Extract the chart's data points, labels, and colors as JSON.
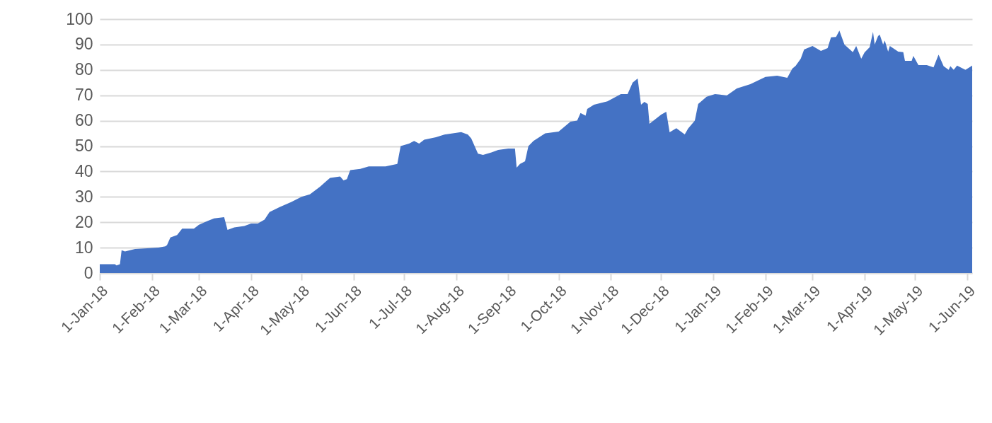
{
  "chart_data": {
    "type": "area",
    "x": [
      "2018-01-01",
      "2018-01-10",
      "2018-01-11",
      "2018-01-13",
      "2018-01-14",
      "2018-01-16",
      "2018-01-22",
      "2018-01-31",
      "2018-02-05",
      "2018-02-09",
      "2018-02-10",
      "2018-02-12",
      "2018-02-16",
      "2018-02-19",
      "2018-02-26",
      "2018-03-01",
      "2018-03-06",
      "2018-03-10",
      "2018-03-16",
      "2018-03-18",
      "2018-03-22",
      "2018-03-28",
      "2018-04-01",
      "2018-04-05",
      "2018-04-09",
      "2018-04-12",
      "2018-04-18",
      "2018-04-25",
      "2018-05-01",
      "2018-05-06",
      "2018-05-12",
      "2018-05-18",
      "2018-05-24",
      "2018-05-26",
      "2018-05-28",
      "2018-05-30",
      "2018-06-05",
      "2018-06-10",
      "2018-06-20",
      "2018-06-27",
      "2018-06-29",
      "2018-07-04",
      "2018-07-07",
      "2018-07-10",
      "2018-07-13",
      "2018-07-20",
      "2018-07-25",
      "2018-08-04",
      "2018-08-08",
      "2018-08-10",
      "2018-08-14",
      "2018-08-17",
      "2018-08-22",
      "2018-08-26",
      "2018-09-01",
      "2018-09-05",
      "2018-09-06",
      "2018-09-08",
      "2018-09-11",
      "2018-09-13",
      "2018-09-16",
      "2018-09-23",
      "2018-10-01",
      "2018-10-08",
      "2018-10-12",
      "2018-10-14",
      "2018-10-17",
      "2018-10-18",
      "2018-10-22",
      "2018-10-30",
      "2018-11-07",
      "2018-11-11",
      "2018-11-14",
      "2018-11-17",
      "2018-11-19",
      "2018-11-21",
      "2018-11-23",
      "2018-11-24",
      "2018-12-01",
      "2018-12-04",
      "2018-12-06",
      "2018-12-10",
      "2018-12-15",
      "2018-12-17",
      "2018-12-21",
      "2018-12-23",
      "2018-12-28",
      "2019-01-02",
      "2019-01-09",
      "2019-01-15",
      "2019-01-23",
      "2019-02-01",
      "2019-02-08",
      "2019-02-14",
      "2019-02-17",
      "2019-02-19",
      "2019-02-22",
      "2019-02-24",
      "2019-03-01",
      "2019-03-06",
      "2019-03-10",
      "2019-03-12",
      "2019-03-15",
      "2019-03-17",
      "2019-03-20",
      "2019-03-25",
      "2019-03-27",
      "2019-03-30",
      "2019-04-01",
      "2019-04-04",
      "2019-04-06",
      "2019-04-07",
      "2019-04-09",
      "2019-04-10",
      "2019-04-12",
      "2019-04-13",
      "2019-04-15",
      "2019-04-16",
      "2019-04-21",
      "2019-04-24",
      "2019-04-25",
      "2019-04-29",
      "2019-04-30",
      "2019-05-03",
      "2019-05-08",
      "2019-05-12",
      "2019-05-15",
      "2019-05-18",
      "2019-05-21",
      "2019-05-22",
      "2019-05-24",
      "2019-05-26",
      "2019-05-31",
      "2019-06-04"
    ],
    "series": [
      {
        "color": "#4472c4",
        "values": [
          3.5,
          3.5,
          3,
          3.5,
          9,
          8.5,
          9.5,
          9.8,
          10,
          10.5,
          11,
          14,
          15,
          17.5,
          17.5,
          19,
          20.5,
          21.5,
          22,
          17,
          18,
          18.5,
          19.5,
          19.5,
          21,
          24,
          26,
          28,
          30,
          31,
          34,
          37.5,
          38,
          36.5,
          37,
          40.5,
          41,
          42,
          42,
          43,
          50,
          51,
          52,
          51,
          52.5,
          53.5,
          54.5,
          55.5,
          54.5,
          53,
          47,
          46.5,
          47.5,
          48.5,
          49,
          49,
          41.5,
          43,
          44,
          50,
          52,
          55,
          55.7,
          59.6,
          60,
          63,
          62,
          64.6,
          66.3,
          67.6,
          70.5,
          70.5,
          75,
          76.6,
          66.3,
          67.4,
          66.6,
          58.8,
          62.4,
          63.5,
          55.4,
          57,
          54.6,
          56.9,
          60,
          66.6,
          69.4,
          70.5,
          69.9,
          72.7,
          74.4,
          77.2,
          77.7,
          76.9,
          80.5,
          81.6,
          84.4,
          88,
          89.4,
          87.5,
          88.6,
          92.8,
          93,
          95.5,
          90,
          87,
          89.4,
          84.4,
          86.9,
          88.9,
          95,
          90,
          93.3,
          93.9,
          90,
          91.6,
          87.2,
          89.4,
          87.2,
          87,
          83.6,
          83.6,
          85.5,
          81.9,
          81.9,
          81,
          86,
          81.5,
          80,
          81.5,
          80,
          81.7,
          80,
          81.7
        ]
      }
    ],
    "xlim": [
      "2018-01-01",
      "2019-06-04"
    ],
    "xticks": [
      {
        "value": "2018-01-01",
        "label": "1-Jan-18"
      },
      {
        "value": "2018-02-01",
        "label": "1-Feb-18"
      },
      {
        "value": "2018-03-01",
        "label": "1-Mar-18"
      },
      {
        "value": "2018-04-01",
        "label": "1-Apr-18"
      },
      {
        "value": "2018-05-01",
        "label": "1-May-18"
      },
      {
        "value": "2018-06-01",
        "label": "1-Jun-18"
      },
      {
        "value": "2018-07-01",
        "label": "1-Jul-18"
      },
      {
        "value": "2018-08-01",
        "label": "1-Aug-18"
      },
      {
        "value": "2018-09-01",
        "label": "1-Sep-18"
      },
      {
        "value": "2018-10-01",
        "label": "1-Oct-18"
      },
      {
        "value": "2018-11-01",
        "label": "1-Nov-18"
      },
      {
        "value": "2018-12-01",
        "label": "1-Dec-18"
      },
      {
        "value": "2019-01-01",
        "label": "1-Jan-19"
      },
      {
        "value": "2019-02-01",
        "label": "1-Feb-19"
      },
      {
        "value": "2019-03-01",
        "label": "1-Mar-19"
      },
      {
        "value": "2019-04-01",
        "label": "1-Apr-19"
      },
      {
        "value": "2019-05-01",
        "label": "1-May-19"
      },
      {
        "value": "2019-06-01",
        "label": "1-Jun-19"
      }
    ],
    "ylim": [
      0,
      100
    ],
    "yticks": [
      0,
      10,
      20,
      30,
      40,
      50,
      60,
      70,
      80,
      90,
      100
    ],
    "grid": "y"
  }
}
